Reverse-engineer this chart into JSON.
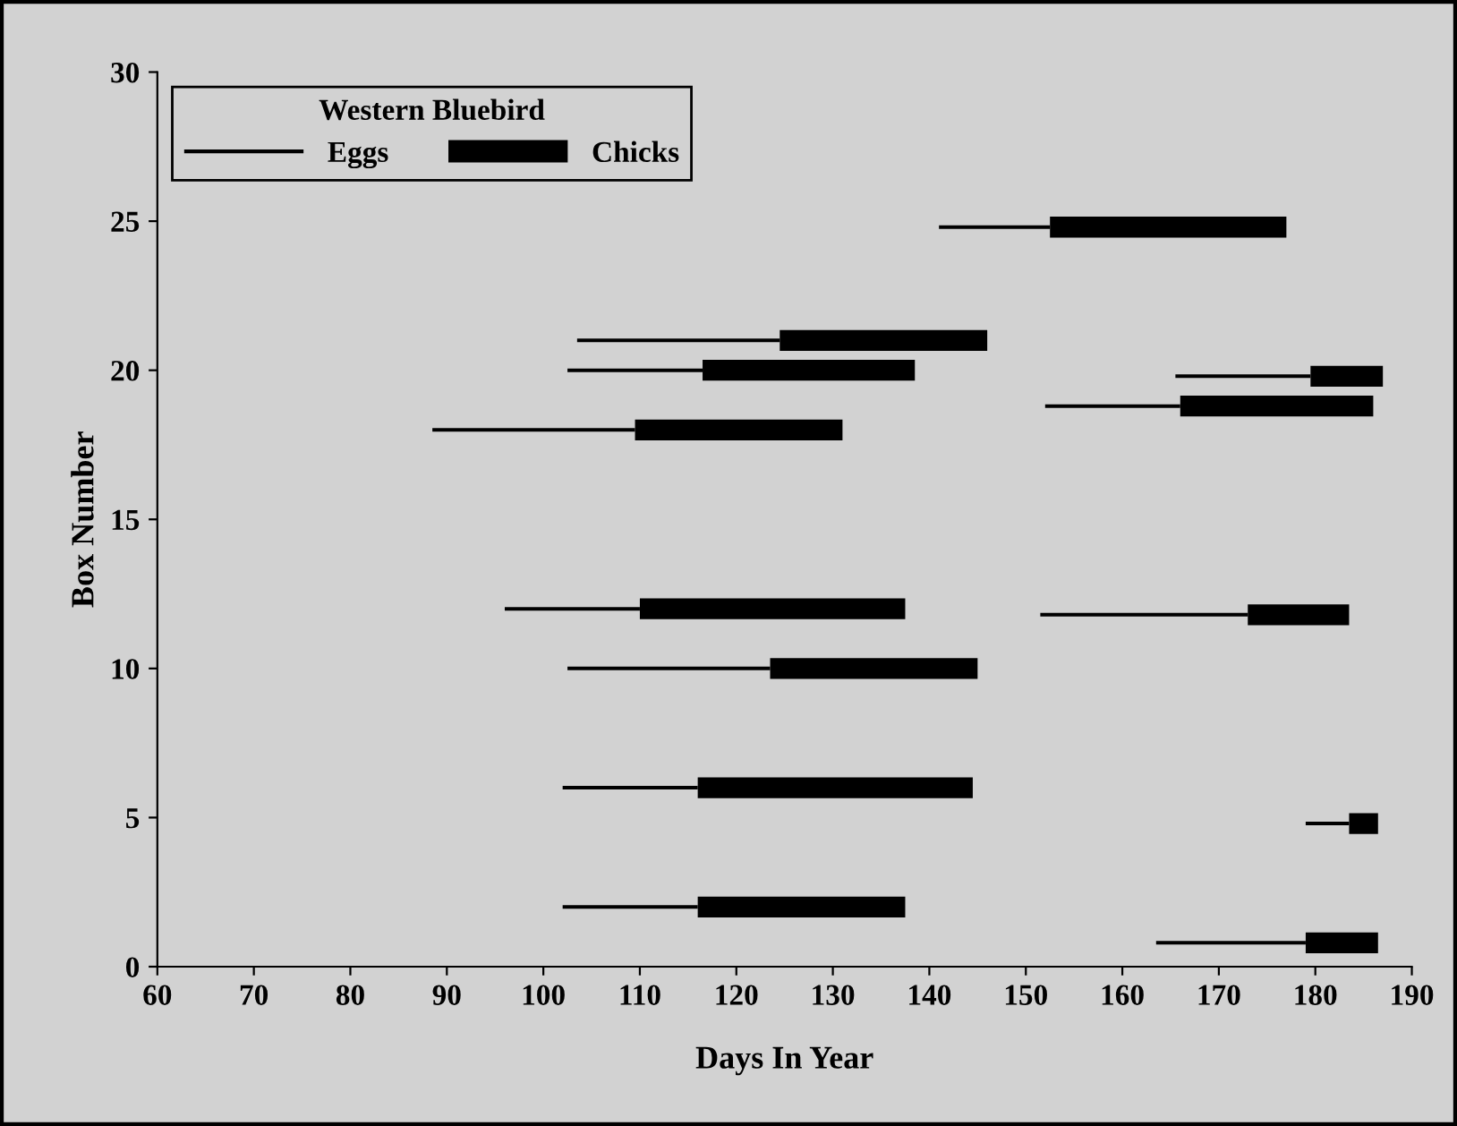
{
  "chart_data": {
    "type": "bar",
    "orientation": "horizontal",
    "xlabel": "Days In Year",
    "ylabel": "Box Number",
    "legend_title": "Western Bluebird",
    "legend": "top left",
    "x": [
      0.8,
      2,
      4.8,
      6,
      10,
      11.8,
      12,
      18,
      18.8,
      19.8,
      20,
      21,
      24.8
    ],
    "series": [
      {
        "name": "Eggs",
        "color": "#000000",
        "base": [
          163.5,
          102,
          179,
          102,
          102.5,
          151.5,
          96,
          88.5,
          152,
          165.5,
          102.5,
          103.5,
          141
        ],
        "values": [
          15.5,
          14,
          4.5,
          14,
          21,
          21.5,
          14,
          21,
          14,
          14,
          14,
          21,
          11.5
        ]
      },
      {
        "name": "Chicks",
        "color": "#000000",
        "base": [
          179,
          116,
          183.5,
          116,
          123.5,
          173,
          110,
          109.5,
          166,
          179.5,
          116.5,
          124.5,
          152.5
        ],
        "values": [
          7.5,
          21.5,
          3,
          28.5,
          21.5,
          10.5,
          27.5,
          21.5,
          20,
          7.5,
          22,
          21.5,
          24.5
        ]
      }
    ],
    "xlim": [
      60,
      190
    ],
    "xticks": [
      60,
      70,
      80,
      90,
      100,
      110,
      120,
      130,
      140,
      150,
      160,
      170,
      180,
      190
    ],
    "ylim": [
      0,
      30
    ],
    "yticks": [
      0,
      5,
      10,
      15,
      20,
      25,
      30
    ]
  }
}
